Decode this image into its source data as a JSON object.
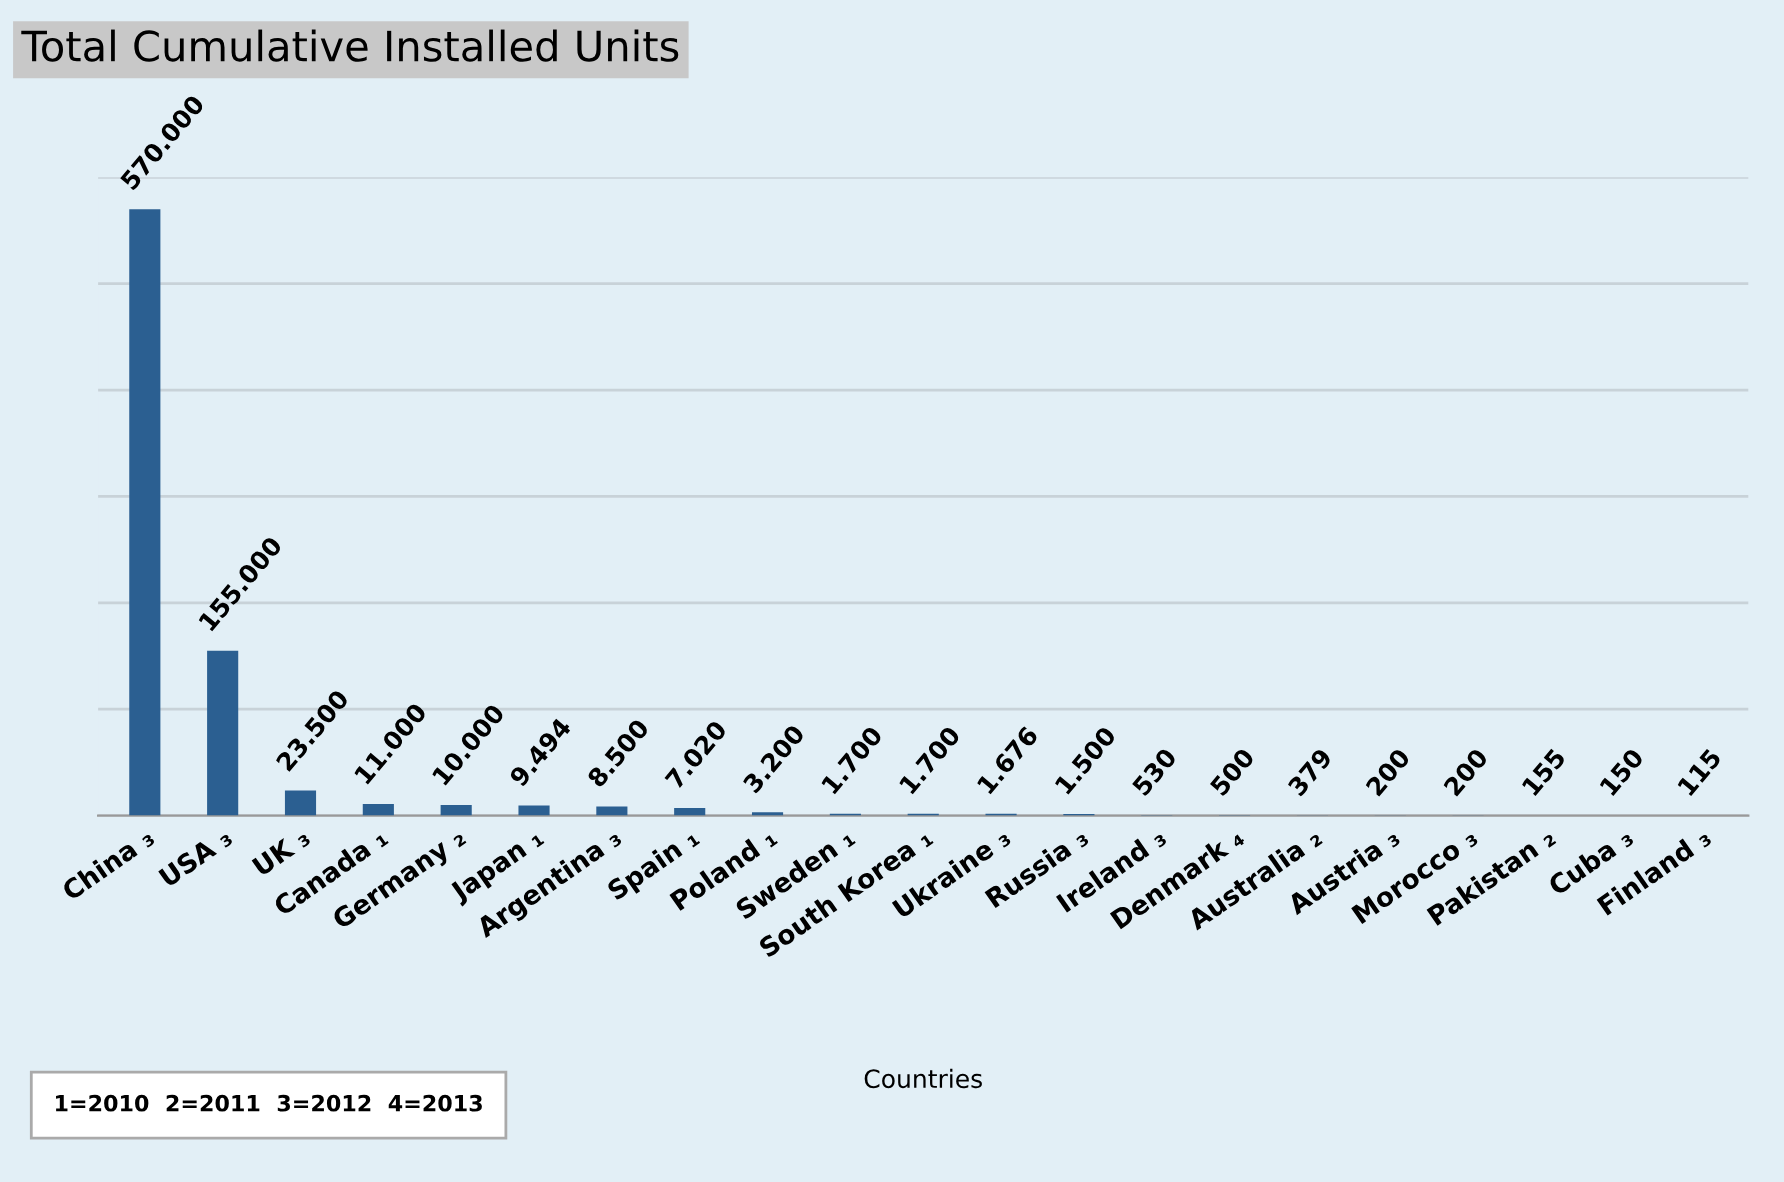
{
  "chart_data": {
    "type": "bar",
    "title": "Total Cumulative Installed Units",
    "xlabel": "Countries",
    "categories": [
      "China ₃",
      "USA ₃",
      "UK ₃",
      "Canada ₁",
      "Germany ₂",
      "Japan ₁",
      "Argentina ₃",
      "Spain ₁",
      "Poland ₁",
      "Sweden ₁",
      "South Korea ₁",
      "Ukraine ₃",
      "Russia ₃",
      "Ireland ₃",
      "Denmark ₄",
      "Australia ₂",
      "Austria ₃",
      "Morocco ₃",
      "Pakistan ₂",
      "Cuba ₃",
      "Finland ₃"
    ],
    "values": [
      570000,
      155000,
      23500,
      11000,
      10000,
      9494,
      8500,
      7020,
      3200,
      1700,
      1700,
      1676,
      1500,
      530,
      500,
      379,
      200,
      200,
      155,
      150,
      115
    ],
    "value_labels": [
      "570.000",
      "155.000",
      "23.500",
      "11.000",
      "10.000",
      "9.494",
      "8.500",
      "7.020",
      "3.200",
      "1.700",
      "1.700",
      "1.676",
      "1.500",
      "530",
      "500",
      "379",
      "200",
      "200",
      "155",
      "150",
      "115"
    ],
    "color": "#2b5f91",
    "ylim": [
      0,
      600000
    ],
    "yticks": [
      {
        "value": 0,
        "label": null
      },
      {
        "value": 100000,
        "label": null
      },
      {
        "value": 200000,
        "label": null
      },
      {
        "value": 300000,
        "label": null
      },
      {
        "value": 400000,
        "label": null
      },
      {
        "value": 500000,
        "label": null
      },
      {
        "value": 600000,
        "label": null
      }
    ],
    "grid": "y",
    "annotations": [
      "1=2010  2=2011  3=2012  4=2013"
    ]
  }
}
